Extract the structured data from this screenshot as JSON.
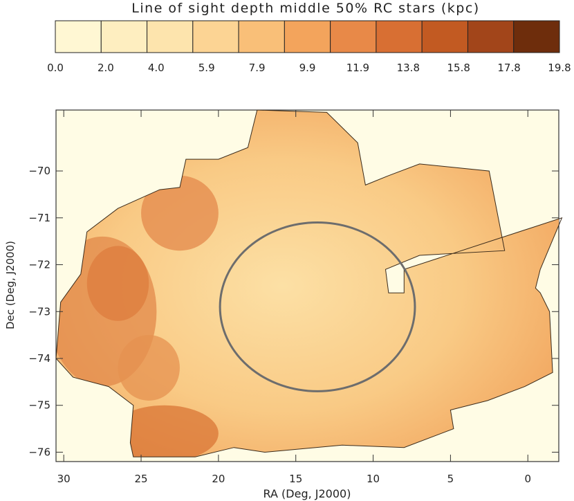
{
  "chart_data": [
    {
      "type": "colorbar",
      "title": "Line of sight depth middle 50% RC stars (kpc)",
      "tick_labels": [
        "0.0",
        "2.0",
        "4.0",
        "5.9",
        "7.9",
        "9.9",
        "11.9",
        "13.8",
        "15.8",
        "17.8",
        "19.8"
      ],
      "range": [
        0.0,
        19.8
      ],
      "colors": [
        "#fff7d3",
        "#feeec0",
        "#fde4ad",
        "#fcd494",
        "#f9bf78",
        "#f3a45c",
        "#e88948",
        "#d86f33",
        "#c25a22",
        "#a2451a",
        "#6e2d0c"
      ]
    },
    {
      "type": "heatmap",
      "xlabel": "RA (Deg, J2000)",
      "ylabel": "Dec (Deg, J2000)",
      "xlim": [
        30.5,
        -2.0
      ],
      "ylim": [
        -76.2,
        -68.7
      ],
      "x_ticks": [
        30,
        25,
        20,
        15,
        10,
        5,
        0
      ],
      "y_ticks": [
        -70,
        -71,
        -72,
        -73,
        -74,
        -75,
        -76
      ],
      "x_tick_labels": [
        "30",
        "25",
        "20",
        "15",
        "10",
        "5",
        "0"
      ],
      "y_tick_labels": [
        "−70",
        "−71",
        "−72",
        "−73",
        "−74",
        "−75",
        "−76"
      ],
      "background_color": "#fffce5",
      "colors": {
        "low": "#fde9b8",
        "mid": "#f7c07a",
        "high": "#c25a22"
      },
      "map_outline_ra_dec": [
        [
          19.0,
          -75.9
        ],
        [
          17,
          -76.0
        ],
        [
          12,
          -75.85
        ],
        [
          8,
          -75.9
        ],
        [
          4.8,
          -75.5
        ],
        [
          5,
          -75.1
        ],
        [
          2.6,
          -74.9
        ],
        [
          0.2,
          -74.6
        ],
        [
          -1.6,
          -74.3
        ],
        [
          -1.4,
          -73.0
        ],
        [
          -0.8,
          -72.6
        ],
        [
          -0.5,
          -72.5
        ],
        [
          -0.8,
          -72.1
        ],
        [
          -2.2,
          -71.0
        ],
        [
          8,
          -72.1
        ],
        [
          8,
          -72.6
        ],
        [
          9,
          -72.6
        ],
        [
          9.2,
          -72.1
        ],
        [
          7,
          -71.8
        ],
        [
          1.5,
          -71.7
        ],
        [
          2.5,
          -70.0
        ],
        [
          7.0,
          -69.85
        ],
        [
          9.0,
          -70.1
        ],
        [
          10.5,
          -70.3
        ],
        [
          11,
          -69.4
        ],
        [
          13,
          -68.75
        ],
        [
          17.5,
          -68.7
        ],
        [
          18.1,
          -69.5
        ],
        [
          20,
          -69.75
        ],
        [
          22.1,
          -69.75
        ],
        [
          22.5,
          -70.35
        ],
        [
          23.8,
          -70.4
        ],
        [
          26.5,
          -70.8
        ],
        [
          28.5,
          -71.3
        ],
        [
          28.9,
          -72.2
        ],
        [
          30.2,
          -72.8
        ],
        [
          30.5,
          -74.0
        ],
        [
          29.4,
          -74.4
        ],
        [
          27.1,
          -74.6
        ],
        [
          25.5,
          -75.0
        ],
        [
          25.7,
          -75.8
        ],
        [
          25.5,
          -76.1
        ],
        [
          21.5,
          -76.1
        ],
        [
          19.0,
          -75.9
        ]
      ],
      "circle_center_ra_dec": [
        13.6,
        -72.9
      ],
      "circle_radius_deg": [
        6.3,
        1.8
      ]
    }
  ]
}
